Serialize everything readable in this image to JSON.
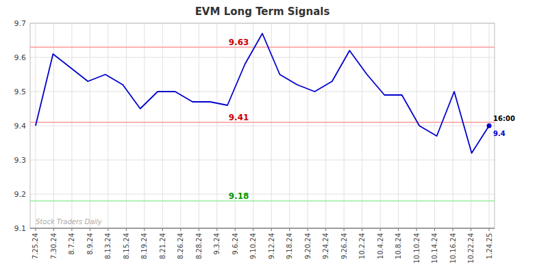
{
  "chart_data": {
    "type": "line",
    "title": "EVM Long Term Signals",
    "x": [
      0,
      0.9615384615,
      1.9230769231,
      2.8846153846,
      3.8461538462,
      4.8076923077,
      5.7692307692,
      6.7307692308,
      7.6923076923,
      8.6538461538,
      9.6153846154,
      10.5769230769,
      11.5384615385,
      12.5,
      13.4615384615,
      14.4230769231,
      15.3846153846,
      16.3461538462,
      17.3076923077,
      18.2692307692,
      19.2307692308,
      20.1923076923,
      21.1538461538,
      22.1153846154,
      23.0769230769,
      24.0384615385,
      25
    ],
    "values": [
      9.4,
      9.61,
      9.57,
      9.53,
      9.55,
      9.52,
      9.45,
      9.5,
      9.5,
      9.47,
      9.47,
      9.46,
      9.58,
      9.67,
      9.55,
      9.52,
      9.5,
      9.53,
      9.62,
      9.55,
      9.49,
      9.49,
      9.4,
      9.37,
      9.5,
      9.32,
      9.4
    ],
    "color": "#0000cc",
    "xlim": [
      -0.3,
      25.3
    ],
    "xticks": [
      {
        "value": 0,
        "label": "7.25.24"
      },
      {
        "value": 1,
        "label": "7.30.24"
      },
      {
        "value": 2,
        "label": "8.7.24"
      },
      {
        "value": 3,
        "label": "8.9.24"
      },
      {
        "value": 4,
        "label": "8.13.24"
      },
      {
        "value": 5,
        "label": "8.15.24"
      },
      {
        "value": 6,
        "label": "8.19.24"
      },
      {
        "value": 7,
        "label": "8.21.24"
      },
      {
        "value": 8,
        "label": "8.26.24"
      },
      {
        "value": 9,
        "label": "8.28.24"
      },
      {
        "value": 10,
        "label": "9.3.24"
      },
      {
        "value": 11,
        "label": "9.6.24"
      },
      {
        "value": 12,
        "label": "9.10.24"
      },
      {
        "value": 13,
        "label": "9.12.24"
      },
      {
        "value": 14,
        "label": "9.18.24"
      },
      {
        "value": 15,
        "label": "9.20.24"
      },
      {
        "value": 16,
        "label": "9.24.24"
      },
      {
        "value": 17,
        "label": "9.26.24"
      },
      {
        "value": 18,
        "label": "10.2.24"
      },
      {
        "value": 19,
        "label": "10.4.24"
      },
      {
        "value": 20,
        "label": "10.8.24"
      },
      {
        "value": 21,
        "label": "10.10.24"
      },
      {
        "value": 22,
        "label": "10.14.24"
      },
      {
        "value": 23,
        "label": "10.16.24"
      },
      {
        "value": 24,
        "label": "10.22.24"
      },
      {
        "value": 25,
        "label": "1.24.25"
      }
    ],
    "ylim": [
      9.1,
      9.7
    ],
    "yticks": [
      9.1,
      9.2,
      9.3,
      9.4,
      9.5,
      9.6,
      9.7
    ],
    "grid": true,
    "reference_lines": [
      {
        "value": 9.63,
        "color": "#ff9999",
        "label_color": "#cc0000"
      },
      {
        "value": 9.41,
        "color": "#ff9999",
        "label_color": "#cc0000"
      },
      {
        "value": 9.18,
        "color": "#99ee99",
        "label_color": "#009900"
      }
    ],
    "end_label": "16:00",
    "watermark": "Stock Traders Daily"
  }
}
